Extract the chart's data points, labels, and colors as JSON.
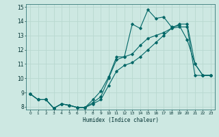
{
  "title": "",
  "xlabel": "Humidex (Indice chaleur)",
  "ylabel": "",
  "bg_color": "#cde8e2",
  "grid_color": "#b8d8d0",
  "line_color": "#006666",
  "xlim": [
    -0.5,
    23.5
  ],
  "ylim": [
    7.8,
    15.2
  ],
  "x_ticks": [
    0,
    1,
    2,
    3,
    4,
    5,
    6,
    7,
    8,
    9,
    10,
    11,
    12,
    13,
    14,
    15,
    16,
    17,
    18,
    19,
    20,
    21,
    22,
    23
  ],
  "y_ticks": [
    8,
    9,
    10,
    11,
    12,
    13,
    14,
    15
  ],
  "series1_x": [
    0,
    1,
    2,
    3,
    4,
    5,
    6,
    7,
    8,
    9,
    10,
    11,
    12,
    13,
    14,
    15,
    16,
    17,
    18,
    19,
    20,
    21,
    22,
    23
  ],
  "series1_y": [
    8.9,
    8.5,
    8.5,
    7.9,
    8.2,
    8.1,
    7.95,
    7.95,
    8.5,
    9.1,
    10.1,
    11.5,
    11.5,
    13.8,
    13.5,
    14.8,
    14.2,
    14.3,
    13.6,
    13.7,
    12.7,
    11.0,
    10.2,
    10.2
  ],
  "series2_x": [
    0,
    1,
    2,
    3,
    4,
    5,
    6,
    7,
    8,
    9,
    10,
    11,
    12,
    13,
    14,
    15,
    16,
    17,
    18,
    19,
    20,
    21,
    22,
    23
  ],
  "series2_y": [
    8.9,
    8.5,
    8.5,
    7.9,
    8.2,
    8.1,
    7.95,
    7.95,
    8.3,
    8.7,
    10.0,
    11.3,
    11.5,
    11.7,
    12.3,
    12.8,
    13.0,
    13.2,
    13.5,
    13.6,
    13.6,
    10.2,
    10.2,
    10.2
  ],
  "series3_x": [
    0,
    1,
    2,
    3,
    4,
    5,
    6,
    7,
    8,
    9,
    10,
    11,
    12,
    13,
    14,
    15,
    16,
    17,
    18,
    19,
    20,
    21,
    22,
    23
  ],
  "series3_y": [
    8.9,
    8.5,
    8.5,
    7.9,
    8.2,
    8.1,
    7.95,
    7.95,
    8.2,
    8.5,
    9.5,
    10.5,
    10.9,
    11.1,
    11.5,
    12.0,
    12.5,
    13.0,
    13.5,
    13.8,
    13.8,
    11.0,
    10.2,
    10.2
  ]
}
